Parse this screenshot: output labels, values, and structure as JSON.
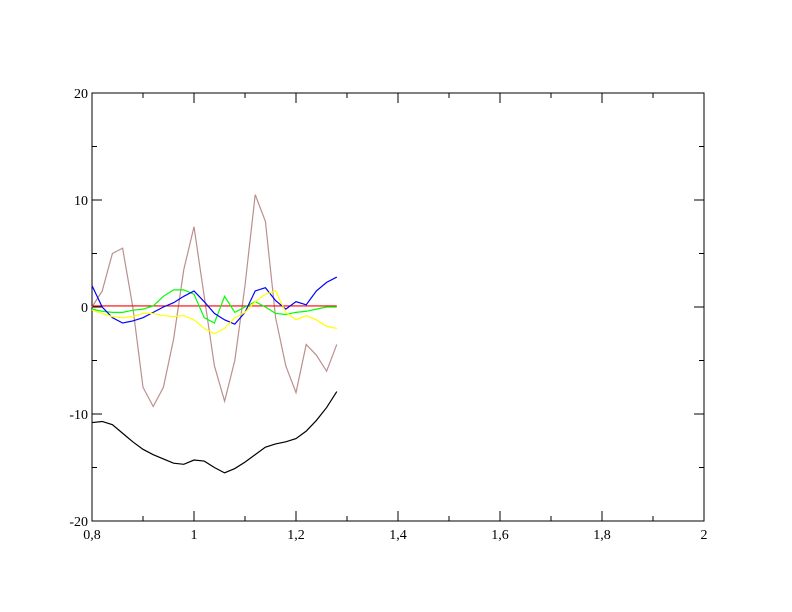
{
  "chart_data": {
    "type": "line",
    "x": [
      0.8,
      0.82,
      0.84,
      0.86,
      0.88,
      0.9,
      0.92,
      0.94,
      0.96,
      0.98,
      1.0,
      1.02,
      1.04,
      1.06,
      1.08,
      1.1,
      1.12,
      1.14,
      1.16,
      1.18,
      1.2,
      1.22,
      1.24,
      1.26,
      1.28
    ],
    "series": [
      {
        "color": "#000000",
        "values": [
          -10.8,
          -10.7,
          -11.0,
          -11.8,
          -12.6,
          -13.3,
          -13.8,
          -14.2,
          -14.6,
          -14.7,
          -14.3,
          -14.4,
          -15.0,
          -15.5,
          -15.1,
          -14.5,
          -13.8,
          -13.1,
          -12.8,
          -12.6,
          -12.3,
          -11.6,
          -10.6,
          -9.4,
          -7.9
        ]
      },
      {
        "color": "#bc8f8f",
        "values": [
          0,
          1.5,
          5,
          5.5,
          0,
          -7.5,
          -9.3,
          -7.5,
          -3,
          3.5,
          7.5,
          1,
          -5.5,
          -8.8,
          -5,
          2,
          10.5,
          8,
          -1,
          -5.5,
          -8,
          -3.5,
          -4.5,
          -6,
          -3.5
        ]
      },
      {
        "color": "#ff0000",
        "values": [
          0.1,
          0.1,
          0.1,
          0.1,
          0.1,
          0.1,
          0.1,
          0.1,
          0.1,
          0.1,
          0.1,
          0.1,
          0.1,
          0.1,
          0.1,
          0.1,
          0.1,
          0.1,
          0.1,
          0.1,
          0.1,
          0.1,
          0.1,
          0.1,
          0.1
        ]
      },
      {
        "color": "#00ff00",
        "values": [
          -0.2,
          -0.4,
          -0.5,
          -0.5,
          -0.3,
          -0.2,
          0.1,
          1.0,
          1.6,
          1.6,
          1.2,
          -1.0,
          -1.5,
          1.0,
          -0.5,
          0.0,
          0.5,
          0.0,
          -0.6,
          -0.7,
          -0.5,
          -0.4,
          -0.2,
          0.0,
          0.0
        ]
      },
      {
        "color": "#0000ff",
        "values": [
          2,
          0,
          -1.0,
          -1.5,
          -1.3,
          -1.0,
          -0.5,
          0.0,
          0.4,
          1.0,
          1.5,
          0.5,
          -0.6,
          -1.2,
          -1.6,
          -0.5,
          1.5,
          1.8,
          0.6,
          -0.2,
          0.5,
          0.2,
          1.5,
          2.3,
          2.8
        ]
      },
      {
        "color": "#ffff00",
        "values": [
          -0.3,
          -0.6,
          -0.9,
          -1.0,
          -0.9,
          -0.6,
          -0.6,
          -0.8,
          -0.9,
          -0.8,
          -1.2,
          -2.0,
          -2.5,
          -2.0,
          -1.0,
          -0.5,
          0.5,
          1.2,
          1.5,
          -0.5,
          -1.2,
          -0.8,
          -1.2,
          -1.8,
          -2.0
        ]
      }
    ],
    "xlim": [
      0.8,
      2
    ],
    "ylim": [
      -20,
      20
    ],
    "xticks": [
      {
        "value": 0.8,
        "label": "0,8"
      },
      1,
      {
        "value": 1.2,
        "label": "1,2"
      },
      {
        "value": 1.4,
        "label": "1,4"
      },
      {
        "value": 1.6,
        "label": "1,6"
      },
      {
        "value": 1.8,
        "label": "1,8"
      },
      2
    ],
    "yticks": [
      -20,
      -10,
      0,
      10,
      20
    ],
    "xminorticks": [
      0.9,
      1.1,
      1.3,
      1.5,
      1.7,
      1.9
    ],
    "yminorticks": [
      -15,
      -5,
      5,
      15
    ]
  }
}
